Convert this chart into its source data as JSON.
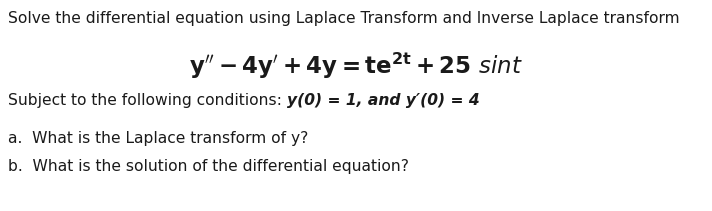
{
  "bg_color": "#ffffff",
  "line1": "Solve the differential equation using Laplace Transform and Inverse Laplace transform",
  "line1_fontsize": 11.2,
  "eq_fontsize": 16.5,
  "cond_prefix": "Subject to the following conditions: ",
  "cond_bold": "y(0) = 1, and y′(0) = 4",
  "cond_fontsize": 11.2,
  "part_a": "a.  What is the Laplace transform of y?",
  "part_b": "b.  What is the solution of the differential equation?",
  "part_fontsize": 11.2,
  "text_color": "#1a1a1a"
}
